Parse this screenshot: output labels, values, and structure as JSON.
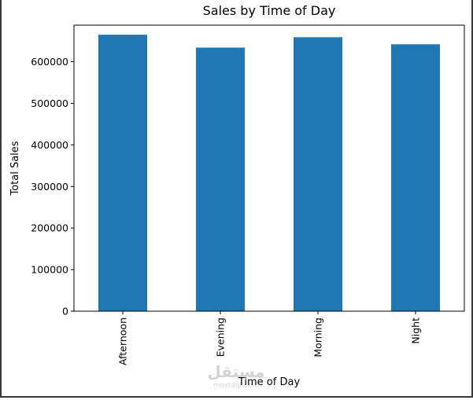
{
  "chart_data": {
    "type": "bar",
    "title": "Sales by Time of Day",
    "xlabel": "Time of Day",
    "ylabel": "Total Sales",
    "categories": [
      "Afternoon",
      "Evening",
      "Morning",
      "Night"
    ],
    "values": [
      665000,
      634000,
      659000,
      642000
    ],
    "ylim": [
      0,
      688000
    ],
    "yticks": [
      0,
      100000,
      200000,
      300000,
      400000,
      500000,
      600000
    ],
    "ytick_labels": [
      "0",
      "100000",
      "200000",
      "300000",
      "400000",
      "500000",
      "600000"
    ],
    "bar_color": "#1f77b4",
    "grid": false,
    "legend": "none"
  },
  "watermark": {
    "text": "مستقل",
    "sub": "mostaql.com"
  }
}
